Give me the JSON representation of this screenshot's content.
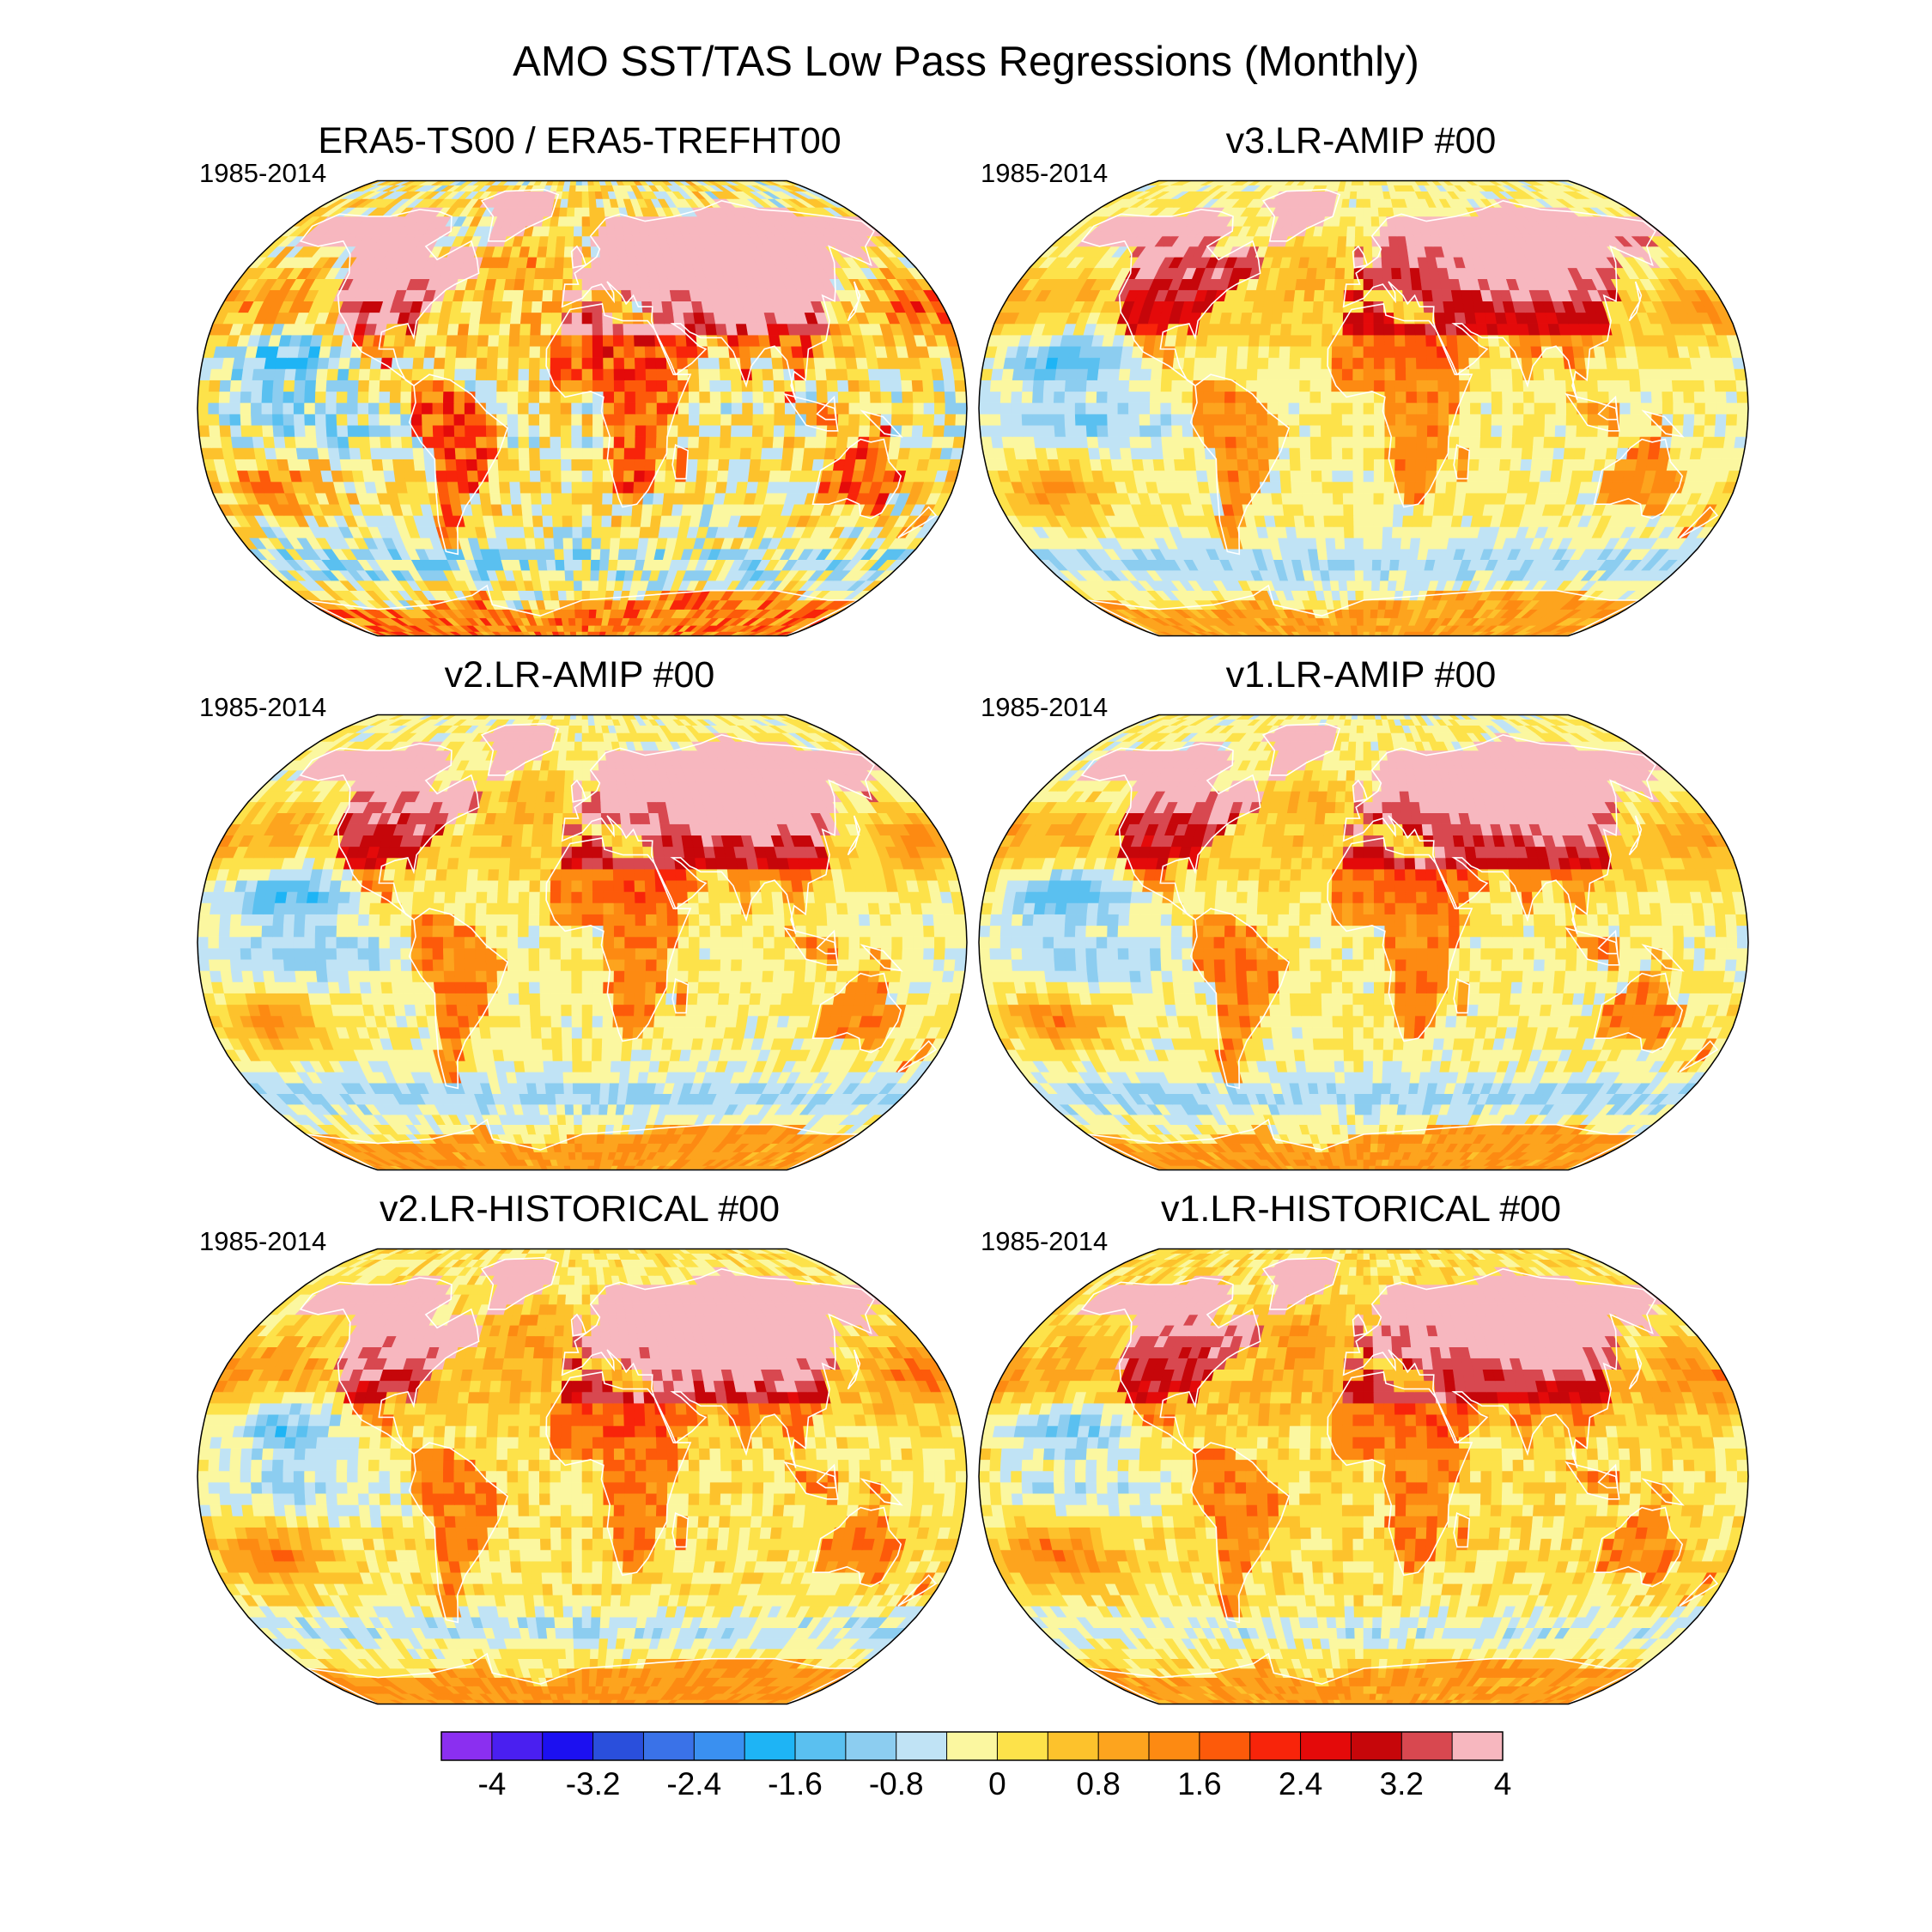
{
  "chart_data": {
    "type": "heatmap",
    "title": "AMO SST/TAS Low Pass Regressions (Monthly)",
    "projection": "robinson",
    "panels": [
      {
        "title": "ERA5-TS00 / ERA5-TREFHT00",
        "period": "1985-2014"
      },
      {
        "title": "v3.LR-AMIP  #00",
        "period": "1985-2014"
      },
      {
        "title": "v2.LR-AMIP  #00",
        "period": "1985-2014"
      },
      {
        "title": "v1.LR-AMIP  #00",
        "period": "1985-2014"
      },
      {
        "title": "v2.LR-HISTORICAL  #00",
        "period": "1985-2014"
      },
      {
        "title": "v1.LR-HISTORICAL  #00",
        "period": "1985-2014"
      }
    ],
    "colorbar": {
      "range": [
        -4.4,
        4.4
      ],
      "step": 0.4,
      "tick_labels": [
        "-4",
        "-3.2",
        "-2.4",
        "-1.6",
        "-0.8",
        "0",
        "0.8",
        "1.6",
        "2.4",
        "3.2",
        "4"
      ],
      "colors": [
        "#8b2ff0",
        "#4a1ff0",
        "#1c10f0",
        "#2a4fdc",
        "#3a72e8",
        "#3a90f0",
        "#1eb4f5",
        "#5ac0f0",
        "#8ccdf0",
        "#c0e3f5",
        "#fbf7a0",
        "#fde24a",
        "#fdc22c",
        "#fda41e",
        "#fd8a12",
        "#fd5a0a",
        "#f8240a",
        "#e40a0a",
        "#c6060a",
        "#d84850",
        "#f7b7bf"
      ]
    }
  }
}
